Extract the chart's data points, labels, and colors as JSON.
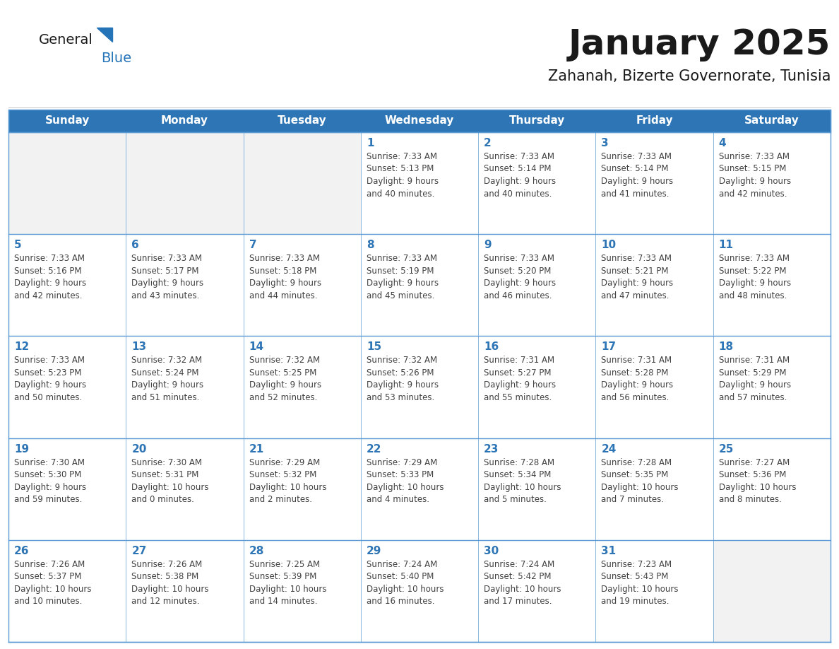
{
  "title": "January 2025",
  "subtitle": "Zahanah, Bizerte Governorate, Tunisia",
  "days_of_week": [
    "Sunday",
    "Monday",
    "Tuesday",
    "Wednesday",
    "Thursday",
    "Friday",
    "Saturday"
  ],
  "header_bg": "#2E75B6",
  "header_text": "#FFFFFF",
  "cell_bg_light": "#F2F2F2",
  "cell_bg_white": "#FFFFFF",
  "border_color": "#2E75B6",
  "separator_color": "#5B9BD5",
  "day_num_color": "#2E75B6",
  "text_color": "#404040",
  "title_color": "#1a1a1a",
  "logo_general_color": "#1a1a1a",
  "logo_blue_color": "#2574B8",
  "calendar_data": [
    [
      {
        "day": null,
        "info": ""
      },
      {
        "day": null,
        "info": ""
      },
      {
        "day": null,
        "info": ""
      },
      {
        "day": 1,
        "info": "Sunrise: 7:33 AM\nSunset: 5:13 PM\nDaylight: 9 hours\nand 40 minutes."
      },
      {
        "day": 2,
        "info": "Sunrise: 7:33 AM\nSunset: 5:14 PM\nDaylight: 9 hours\nand 40 minutes."
      },
      {
        "day": 3,
        "info": "Sunrise: 7:33 AM\nSunset: 5:14 PM\nDaylight: 9 hours\nand 41 minutes."
      },
      {
        "day": 4,
        "info": "Sunrise: 7:33 AM\nSunset: 5:15 PM\nDaylight: 9 hours\nand 42 minutes."
      }
    ],
    [
      {
        "day": 5,
        "info": "Sunrise: 7:33 AM\nSunset: 5:16 PM\nDaylight: 9 hours\nand 42 minutes."
      },
      {
        "day": 6,
        "info": "Sunrise: 7:33 AM\nSunset: 5:17 PM\nDaylight: 9 hours\nand 43 minutes."
      },
      {
        "day": 7,
        "info": "Sunrise: 7:33 AM\nSunset: 5:18 PM\nDaylight: 9 hours\nand 44 minutes."
      },
      {
        "day": 8,
        "info": "Sunrise: 7:33 AM\nSunset: 5:19 PM\nDaylight: 9 hours\nand 45 minutes."
      },
      {
        "day": 9,
        "info": "Sunrise: 7:33 AM\nSunset: 5:20 PM\nDaylight: 9 hours\nand 46 minutes."
      },
      {
        "day": 10,
        "info": "Sunrise: 7:33 AM\nSunset: 5:21 PM\nDaylight: 9 hours\nand 47 minutes."
      },
      {
        "day": 11,
        "info": "Sunrise: 7:33 AM\nSunset: 5:22 PM\nDaylight: 9 hours\nand 48 minutes."
      }
    ],
    [
      {
        "day": 12,
        "info": "Sunrise: 7:33 AM\nSunset: 5:23 PM\nDaylight: 9 hours\nand 50 minutes."
      },
      {
        "day": 13,
        "info": "Sunrise: 7:32 AM\nSunset: 5:24 PM\nDaylight: 9 hours\nand 51 minutes."
      },
      {
        "day": 14,
        "info": "Sunrise: 7:32 AM\nSunset: 5:25 PM\nDaylight: 9 hours\nand 52 minutes."
      },
      {
        "day": 15,
        "info": "Sunrise: 7:32 AM\nSunset: 5:26 PM\nDaylight: 9 hours\nand 53 minutes."
      },
      {
        "day": 16,
        "info": "Sunrise: 7:31 AM\nSunset: 5:27 PM\nDaylight: 9 hours\nand 55 minutes."
      },
      {
        "day": 17,
        "info": "Sunrise: 7:31 AM\nSunset: 5:28 PM\nDaylight: 9 hours\nand 56 minutes."
      },
      {
        "day": 18,
        "info": "Sunrise: 7:31 AM\nSunset: 5:29 PM\nDaylight: 9 hours\nand 57 minutes."
      }
    ],
    [
      {
        "day": 19,
        "info": "Sunrise: 7:30 AM\nSunset: 5:30 PM\nDaylight: 9 hours\nand 59 minutes."
      },
      {
        "day": 20,
        "info": "Sunrise: 7:30 AM\nSunset: 5:31 PM\nDaylight: 10 hours\nand 0 minutes."
      },
      {
        "day": 21,
        "info": "Sunrise: 7:29 AM\nSunset: 5:32 PM\nDaylight: 10 hours\nand 2 minutes."
      },
      {
        "day": 22,
        "info": "Sunrise: 7:29 AM\nSunset: 5:33 PM\nDaylight: 10 hours\nand 4 minutes."
      },
      {
        "day": 23,
        "info": "Sunrise: 7:28 AM\nSunset: 5:34 PM\nDaylight: 10 hours\nand 5 minutes."
      },
      {
        "day": 24,
        "info": "Sunrise: 7:28 AM\nSunset: 5:35 PM\nDaylight: 10 hours\nand 7 minutes."
      },
      {
        "day": 25,
        "info": "Sunrise: 7:27 AM\nSunset: 5:36 PM\nDaylight: 10 hours\nand 8 minutes."
      }
    ],
    [
      {
        "day": 26,
        "info": "Sunrise: 7:26 AM\nSunset: 5:37 PM\nDaylight: 10 hours\nand 10 minutes."
      },
      {
        "day": 27,
        "info": "Sunrise: 7:26 AM\nSunset: 5:38 PM\nDaylight: 10 hours\nand 12 minutes."
      },
      {
        "day": 28,
        "info": "Sunrise: 7:25 AM\nSunset: 5:39 PM\nDaylight: 10 hours\nand 14 minutes."
      },
      {
        "day": 29,
        "info": "Sunrise: 7:24 AM\nSunset: 5:40 PM\nDaylight: 10 hours\nand 16 minutes."
      },
      {
        "day": 30,
        "info": "Sunrise: 7:24 AM\nSunset: 5:42 PM\nDaylight: 10 hours\nand 17 minutes."
      },
      {
        "day": 31,
        "info": "Sunrise: 7:23 AM\nSunset: 5:43 PM\nDaylight: 10 hours\nand 19 minutes."
      },
      {
        "day": null,
        "info": ""
      }
    ]
  ]
}
